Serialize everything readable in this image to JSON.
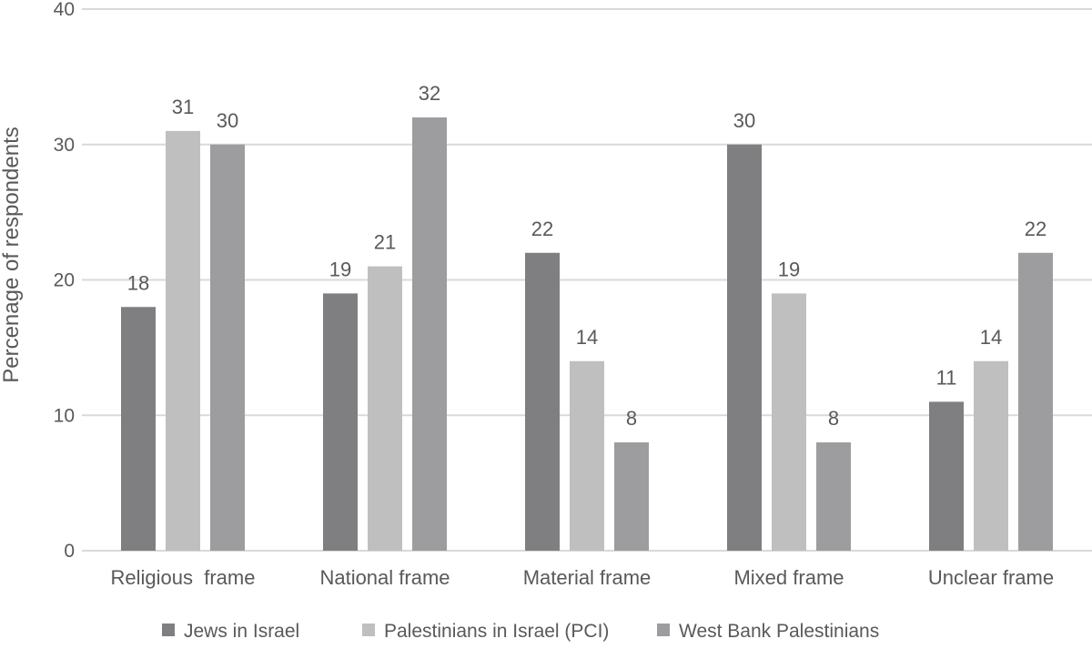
{
  "chart_data": {
    "type": "bar",
    "title": "",
    "xlabel": "",
    "ylabel": "Percenage of respondents",
    "ylim": [
      0,
      40
    ],
    "yticks": [
      0,
      10,
      20,
      30,
      40
    ],
    "grid": true,
    "legend_position": "bottom",
    "categories": [
      "Religious  frame",
      "National frame",
      "Material frame",
      "Mixed frame",
      "Unclear frame"
    ],
    "series": [
      {
        "name": "Jews in Israel",
        "color": "#7f7f81",
        "values": [
          18,
          19,
          22,
          30,
          11
        ]
      },
      {
        "name": "Palestinians in Israel (PCI)",
        "color": "#bfbfc0",
        "values": [
          31,
          21,
          14,
          19,
          14
        ]
      },
      {
        "name": "West Bank Palestinians",
        "color": "#9d9d9f",
        "values": [
          30,
          32,
          8,
          8,
          22
        ]
      }
    ]
  }
}
